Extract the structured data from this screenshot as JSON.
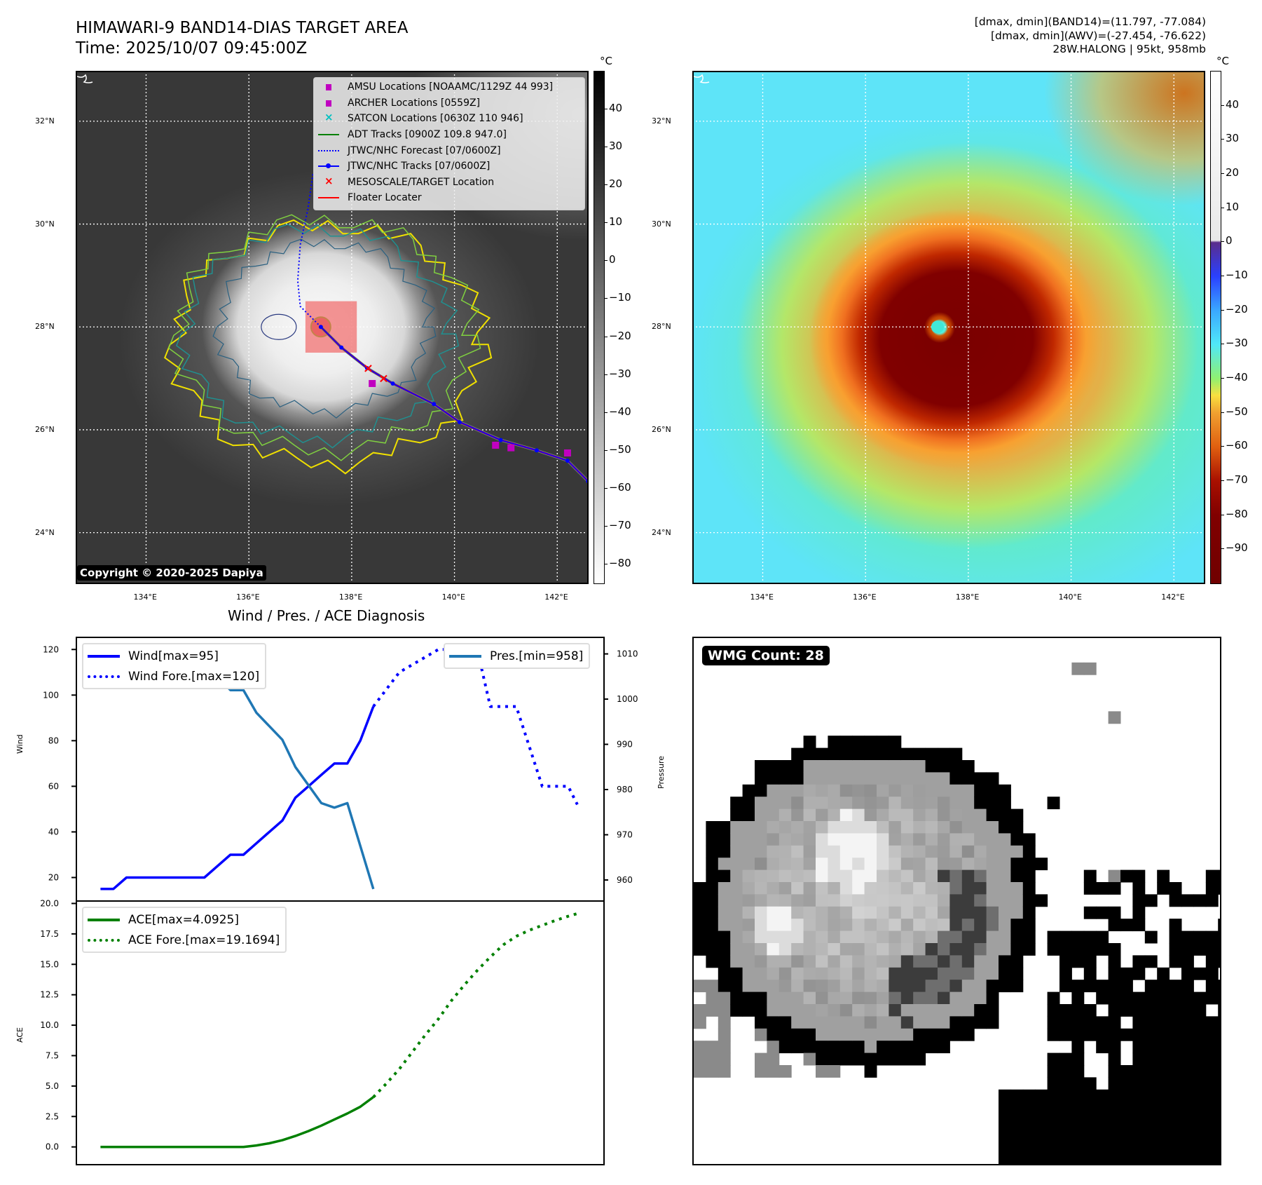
{
  "header": {
    "title": "HIMAWARI-9 BAND14-DIAS TARGET AREA",
    "time": "Time: 2025/10/07 09:45:00Z",
    "info_line1": "[dmax, dmin](BAND14)=(11.797, -77.084)",
    "info_line2": "[dmax, dmin](AWV)=(-27.454, -76.622)",
    "info_line3": "28W.HALONG | 95kt, 958mb"
  },
  "maps": {
    "extent": {
      "lon": [
        132.63,
        142.61
      ],
      "lat": [
        23.0,
        32.98
      ]
    },
    "lat_ticks": [
      {
        "v": 32,
        "label": "32°N"
      },
      {
        "v": 30,
        "label": "30°N"
      },
      {
        "v": 28,
        "label": "28°N"
      },
      {
        "v": 26,
        "label": "26°N"
      },
      {
        "v": 24,
        "label": "24°N"
      }
    ],
    "lon_ticks": [
      {
        "v": 134,
        "label": "134°E"
      },
      {
        "v": 136,
        "label": "136°E"
      },
      {
        "v": 138,
        "label": "138°E"
      },
      {
        "v": 140,
        "label": "140°E"
      },
      {
        "v": 142,
        "label": "142°E"
      }
    ],
    "storm_center": [
      137.4,
      28.0
    ],
    "target_box": {
      "lon": [
        137.1,
        138.1
      ],
      "lat": [
        27.5,
        28.5
      ]
    },
    "jtwc_track": [
      [
        137.4,
        28.0
      ],
      [
        137.8,
        27.6
      ],
      [
        138.3,
        27.2
      ],
      [
        138.8,
        26.9
      ],
      [
        139.6,
        26.5
      ],
      [
        140.1,
        26.15
      ],
      [
        140.9,
        25.8
      ],
      [
        141.6,
        25.6
      ],
      [
        142.2,
        25.4
      ],
      [
        142.6,
        25.0
      ]
    ],
    "jtwc_forecast": [
      [
        137.4,
        28.0
      ],
      [
        137.0,
        28.4
      ],
      [
        136.95,
        28.9
      ],
      [
        137.0,
        29.6
      ],
      [
        137.15,
        30.3
      ],
      [
        137.25,
        31.0
      ]
    ],
    "amsu_points": [
      [
        138.4,
        26.9
      ],
      [
        140.8,
        25.7
      ],
      [
        141.1,
        25.65
      ],
      [
        142.2,
        25.55
      ]
    ],
    "copyright": "Copyright © 2020-2025 Dapiya",
    "unit": "°C",
    "left_colorbar": {
      "range": [
        -85,
        50
      ],
      "ticks": [
        40,
        30,
        20,
        10,
        0,
        -10,
        -20,
        -30,
        -40,
        -50,
        -60,
        -70,
        -80
      ],
      "tick_labels": [
        "40",
        "30",
        "20",
        "10",
        "0",
        "−10",
        "−20",
        "−30",
        "−40",
        "−50",
        "−60",
        "−70",
        "−80"
      ]
    },
    "right_colorbar": {
      "range": [
        -100,
        50
      ],
      "ticks": [
        40,
        30,
        20,
        10,
        0,
        -10,
        -20,
        -30,
        -40,
        -50,
        -60,
        -70,
        -80,
        -90
      ],
      "tick_labels": [
        "40",
        "30",
        "20",
        "10",
        "0",
        "−10",
        "−20",
        "−30",
        "−40",
        "−50",
        "−60",
        "−70",
        "−80",
        "−90"
      ]
    },
    "legend": [
      {
        "label": "AMSU Locations [NOAAMC/1129Z 44 993]",
        "icon": "square-marker",
        "color": "#c000c0"
      },
      {
        "label": "ARCHER Locations [0559Z]",
        "icon": "square-marker",
        "color": "#c000c0"
      },
      {
        "label": "SATCON Locations [0630Z 110 946]",
        "icon": "x-marker",
        "color": "#00c0c0"
      },
      {
        "label": "ADT Tracks [0900Z 109.8 947.0]",
        "icon": "solid-line",
        "color": "#008000"
      },
      {
        "label": "JTWC/NHC Forecast [07/0600Z]",
        "icon": "dotted-line",
        "color": "#0000ff"
      },
      {
        "label": "JTWC/NHC Tracks [07/0600Z]",
        "icon": "line-dot",
        "color": "#0000ff"
      },
      {
        "label": "MESOSCALE/TARGET Location",
        "icon": "x-marker",
        "color": "#ff0000"
      },
      {
        "label": "Floater Locater",
        "icon": "solid-line",
        "color": "#ff0000"
      }
    ]
  },
  "wmg": {
    "label": "WMG Count: 28"
  },
  "chart_data": [
    {
      "type": "line",
      "title": "Wind / Pres. / ACE Diagnosis",
      "ylabel": "Wind",
      "y2label": "Pressure",
      "xlim": [
        -1.8,
        38.7
      ],
      "ylim": [
        10,
        125
      ],
      "y2lim": [
        955.5,
        1013.5
      ],
      "yticks": [
        20,
        40,
        60,
        80,
        100,
        120
      ],
      "y2ticks": [
        960,
        970,
        980,
        990,
        1000,
        1010
      ],
      "series": [
        {
          "name": "Wind[max=95]",
          "axis": "left",
          "style": "solid",
          "color": "#0000ff",
          "x": [
            0,
            1,
            2,
            3,
            4,
            5,
            6,
            7,
            8,
            9,
            10,
            11,
            12,
            13,
            14,
            15,
            16,
            17,
            18,
            19,
            20,
            21
          ],
          "y": [
            15,
            15,
            20,
            20,
            20,
            20,
            20,
            20,
            20,
            25,
            30,
            30,
            35,
            40,
            45,
            55,
            60,
            65,
            70,
            70,
            80,
            95
          ]
        },
        {
          "name": "Wind Fore.[max=120]",
          "axis": "left",
          "style": "dotted",
          "color": "#0000ff",
          "x": [
            21,
            23,
            26,
            29,
            30,
            32,
            34,
            36,
            36.7
          ],
          "y": [
            95,
            110,
            120,
            120,
            95,
            95,
            60,
            60,
            52
          ]
        },
        {
          "name": "Pres.[min=958]",
          "axis": "right",
          "style": "solid",
          "color": "#1f77b4",
          "x": [
            0,
            2,
            4,
            6,
            7,
            8,
            9,
            10,
            11,
            12,
            14,
            15,
            17,
            18,
            19,
            21
          ],
          "y": [
            1009,
            1009,
            1011,
            1011,
            1008,
            1006,
            1005,
            1002,
            1002,
            997,
            991,
            985,
            977,
            976,
            977,
            958
          ]
        }
      ]
    },
    {
      "type": "line",
      "ylabel": "ACE",
      "xlim": [
        -1.8,
        38.7
      ],
      "ylim": [
        -1.4,
        20.2
      ],
      "yticks": [
        0,
        2.5,
        5,
        7.5,
        10,
        12.5,
        15,
        17.5,
        20
      ],
      "ytick_labels": [
        "0.0",
        "2.5",
        "5.0",
        "7.5",
        "10.0",
        "12.5",
        "15.0",
        "17.5",
        "20.0"
      ],
      "series": [
        {
          "name": "ACE[max=4.0925]",
          "style": "solid",
          "color": "#008000",
          "x": [
            0,
            11,
            12,
            13,
            14,
            15,
            16,
            17,
            18,
            19,
            20,
            21
          ],
          "y": [
            0,
            0,
            0.12,
            0.3,
            0.55,
            0.9,
            1.3,
            1.75,
            2.25,
            2.75,
            3.3,
            4.0925
          ]
        },
        {
          "name": "ACE Fore.[max=19.1694]",
          "style": "dotted",
          "color": "#008000",
          "x": [
            21,
            22,
            23,
            24,
            25,
            26,
            27,
            28,
            29,
            30,
            31,
            32,
            33,
            34,
            35,
            36,
            36.7
          ],
          "y": [
            4.09,
            5.2,
            6.4,
            7.8,
            9.2,
            10.5,
            12,
            13.3,
            14.5,
            15.6,
            16.6,
            17.3,
            17.8,
            18.2,
            18.6,
            18.95,
            19.1694
          ]
        }
      ]
    }
  ]
}
